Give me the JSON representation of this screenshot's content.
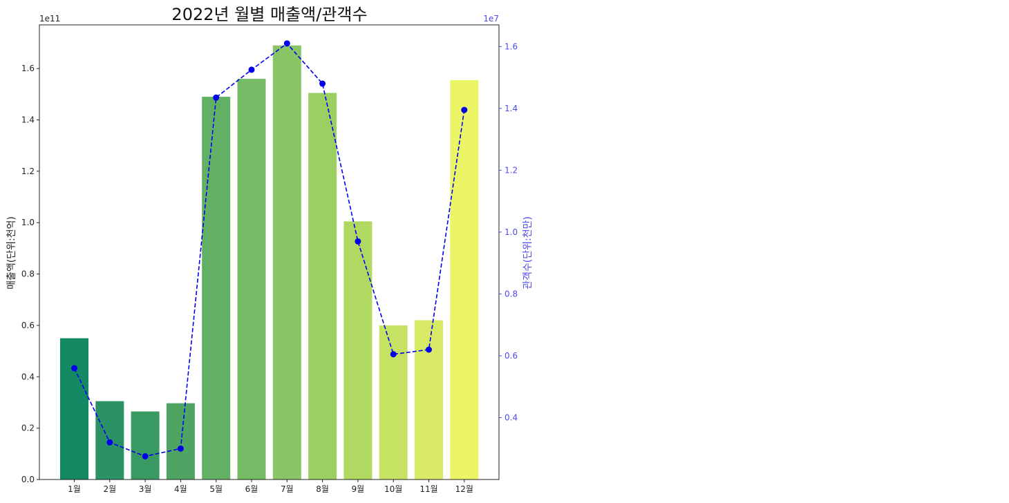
{
  "chart_data": {
    "type": "bar",
    "title": "2022년 월별 매출액/관객수",
    "categories": [
      "1월",
      "2월",
      "3월",
      "4월",
      "5월",
      "6월",
      "7월",
      "8월",
      "9월",
      "10월",
      "11월",
      "12월"
    ],
    "series": [
      {
        "type": "bar",
        "axis": "left",
        "values": [
          55000000000.0,
          30500000000.0,
          26500000000.0,
          29700000000.0,
          149000000000.0,
          156000000000.0,
          169000000000.0,
          150500000000.0,
          100500000000.0,
          60000000000.0,
          62000000000.0,
          155500000000.0
        ],
        "colors": [
          "#148a64",
          "#2a9264",
          "#3a9a64",
          "#4ea463",
          "#62b064",
          "#76bb66",
          "#89c564",
          "#9ccf62",
          "#b1d961",
          "#c6e263",
          "#d8ea65",
          "#ebf565"
        ]
      },
      {
        "type": "line",
        "axis": "right",
        "values": [
          5600000.0,
          3200000.0,
          2750000.0,
          3000000.0,
          14350000.0,
          15250000.0,
          16100000.0,
          14800000.0,
          9700000.0,
          6050000.0,
          6200000.0,
          13950000.0
        ],
        "color": "#0000ee",
        "style": "dashed",
        "marker": "circle"
      }
    ],
    "ylabel": "매출액(단위:천억)",
    "y2label": "관객수(단위:천만)",
    "ylim": [
      0,
      177000000000.0
    ],
    "y2lim": [
      2000000.0,
      16700000.0
    ],
    "yticks": [
      {
        "value": 0,
        "label": "0.0"
      },
      {
        "value": 20000000000.0,
        "label": "0.2"
      },
      {
        "value": 40000000000.0,
        "label": "0.4"
      },
      {
        "value": 60000000000.0,
        "label": "0.6"
      },
      {
        "value": 80000000000.0,
        "label": "0.8"
      },
      {
        "value": 100000000000.0,
        "label": "1.0"
      },
      {
        "value": 120000000000.0,
        "label": "1.2"
      },
      {
        "value": 140000000000.0,
        "label": "1.4"
      },
      {
        "value": 160000000000.0,
        "label": "1.6"
      }
    ],
    "y2ticks": [
      {
        "value": 4000000.0,
        "label": "0.4"
      },
      {
        "value": 6000000.0,
        "label": "0.6"
      },
      {
        "value": 8000000.0,
        "label": "0.8"
      },
      {
        "value": 10000000.0,
        "label": "1.0"
      },
      {
        "value": 12000000.0,
        "label": "1.2"
      },
      {
        "value": 14000000.0,
        "label": "1.4"
      },
      {
        "value": 16000000.0,
        "label": "1.6"
      }
    ],
    "y_offset_label": "1e11",
    "y2_offset_label": "1e7",
    "grid": false,
    "legend": "none",
    "right_axis_color": "#4a4aee"
  }
}
